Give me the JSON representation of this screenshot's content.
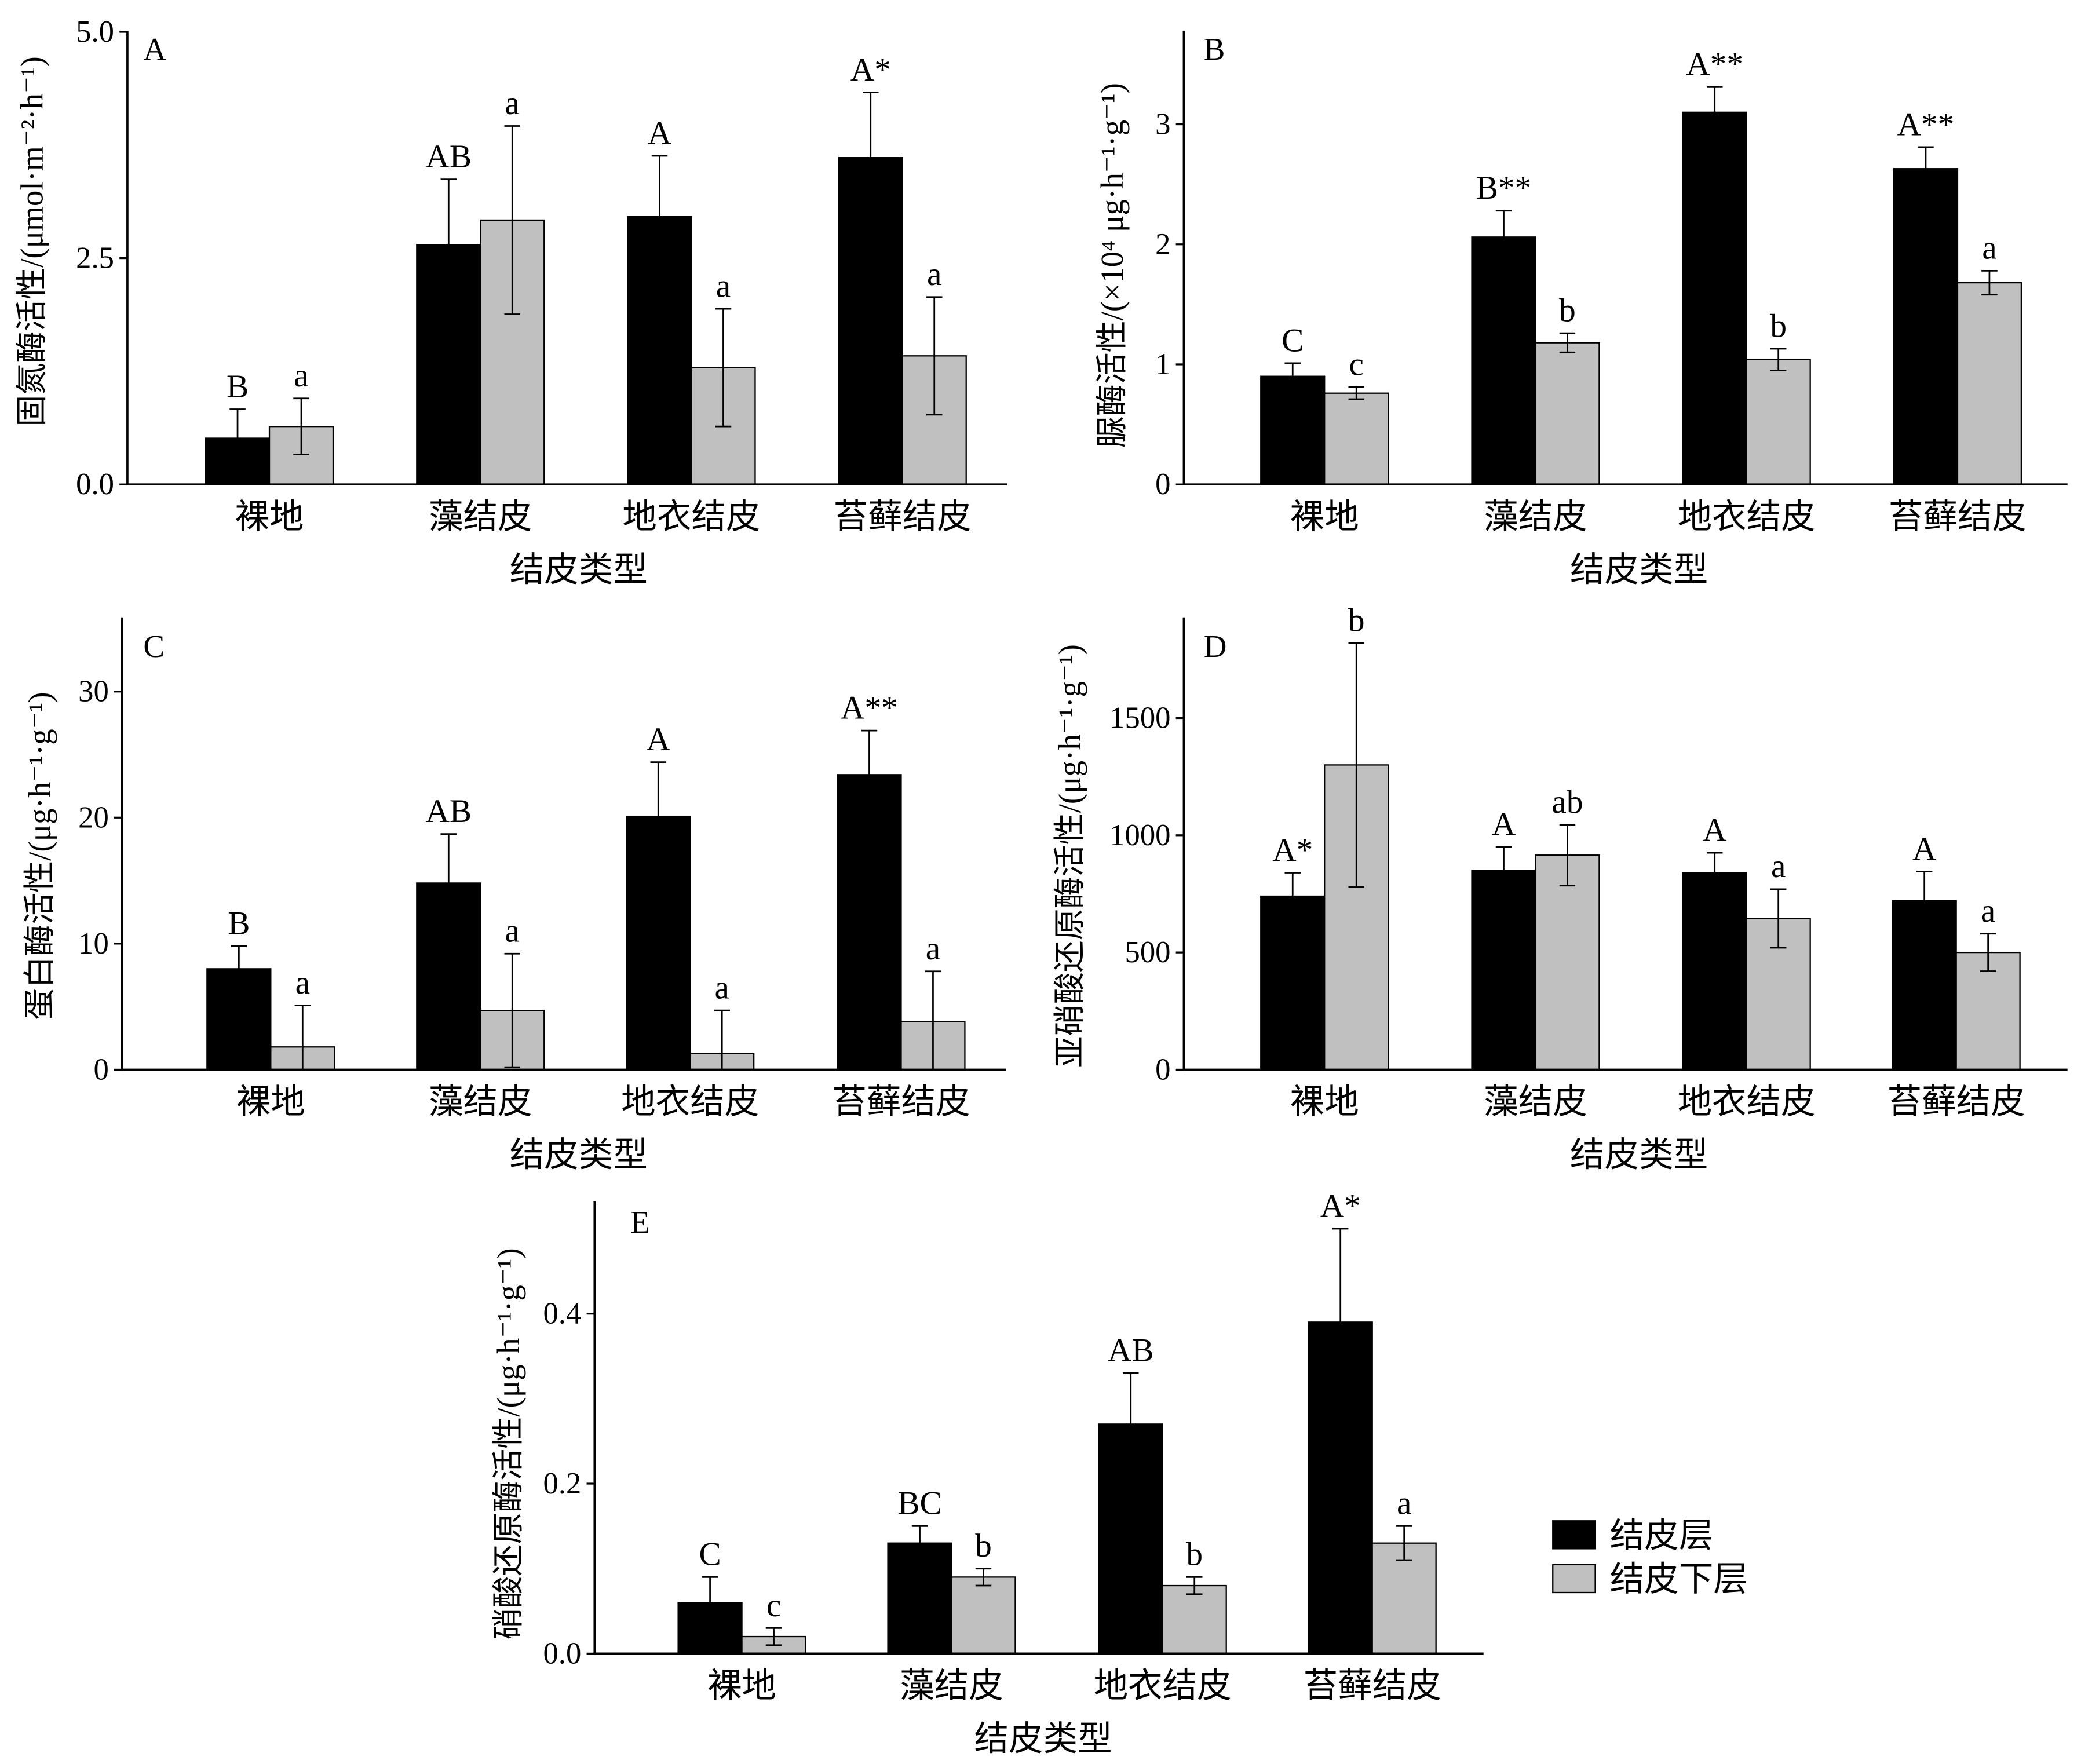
{
  "legend": {
    "placement": "right",
    "items": [
      {
        "name": "结皮层",
        "color": "#000000"
      },
      {
        "name": "结皮下层",
        "color": "#c0c0c0"
      }
    ]
  },
  "chart_data": [
    {
      "panel": "A",
      "type": "bar",
      "grid": false,
      "categories": [
        "裸地",
        "藻结皮",
        "地衣结皮",
        "苔藓结皮"
      ],
      "xlabel": "结皮类型",
      "ylabel": "固氮酶活性/(μmol·m⁻²·h⁻¹)",
      "ylim": [
        0,
        5.0
      ],
      "yticks": [
        0,
        2.5,
        5.0
      ],
      "yticklabels": [
        "0.0",
        "2.5",
        "5.0"
      ],
      "series": [
        {
          "name": "结皮层",
          "color": "#000000",
          "values": [
            0.51,
            2.65,
            2.96,
            3.61
          ],
          "errors": [
            0.32,
            0.72,
            0.67,
            0.72
          ],
          "labels": [
            "B",
            "AB",
            "A",
            "A*"
          ]
        },
        {
          "name": "结皮下层",
          "color": "#c0c0c0",
          "values": [
            0.64,
            2.92,
            1.29,
            1.42
          ],
          "errors": [
            0.31,
            1.04,
            0.65,
            0.65
          ],
          "labels": [
            "a",
            "a",
            "a",
            "a"
          ]
        }
      ]
    },
    {
      "panel": "B",
      "type": "bar",
      "grid": false,
      "categories": [
        "裸地",
        "藻结皮",
        "地衣结皮",
        "苔藓结皮"
      ],
      "xlabel": "结皮类型",
      "ylabel": "脲酶活性/(×10⁴ μg·h⁻¹·g⁻¹)",
      "ylim": [
        0,
        3.77
      ],
      "yticks": [
        0,
        1,
        2,
        3
      ],
      "yticklabels": [
        "0",
        "1",
        "2",
        "3"
      ],
      "series": [
        {
          "name": "结皮层",
          "color": "#000000",
          "values": [
            0.9,
            2.06,
            3.1,
            2.63
          ],
          "errors": [
            0.11,
            0.22,
            0.21,
            0.18
          ],
          "labels": [
            "C",
            "B**",
            "A**",
            "A**"
          ]
        },
        {
          "name": "结皮下层",
          "color": "#c0c0c0",
          "values": [
            0.76,
            1.18,
            1.04,
            1.68
          ],
          "errors": [
            0.05,
            0.08,
            0.09,
            0.1
          ],
          "labels": [
            "c",
            "b",
            "b",
            "a"
          ]
        }
      ]
    },
    {
      "panel": "C",
      "type": "bar",
      "grid": false,
      "categories": [
        "裸地",
        "藻结皮",
        "地衣结皮",
        "苔藓结皮"
      ],
      "xlabel": "结皮类型",
      "ylabel": "蛋白酶活性/(μg·h⁻¹·g⁻¹)",
      "ylim": [
        0,
        35.8
      ],
      "yticks": [
        0,
        10,
        20,
        30
      ],
      "yticklabels": [
        "0",
        "10",
        "20",
        "30"
      ],
      "series": [
        {
          "name": "结皮层",
          "color": "#000000",
          "values": [
            8.0,
            14.8,
            20.1,
            23.4
          ],
          "errors": [
            1.8,
            3.9,
            4.3,
            3.5
          ],
          "labels": [
            "B",
            "AB",
            "A",
            "A**"
          ]
        },
        {
          "name": "结皮下层",
          "color": "#c0c0c0",
          "values": [
            1.8,
            4.7,
            1.3,
            3.8
          ],
          "errors": [
            3.3,
            4.5,
            3.4,
            4.0
          ],
          "labels": [
            "a",
            "a",
            "a",
            "a"
          ]
        }
      ]
    },
    {
      "panel": "D",
      "type": "bar",
      "grid": false,
      "categories": [
        "裸地",
        "藻结皮",
        "地衣结皮",
        "苔藓结皮"
      ],
      "xlabel": "结皮类型",
      "ylabel": "亚硝酸还原酶活性/(μg·h⁻¹·g⁻¹)",
      "ylim": [
        0,
        1925
      ],
      "yticks": [
        0,
        500,
        1000,
        1500
      ],
      "yticklabels": [
        "0",
        "500",
        "1000",
        "1500"
      ],
      "series": [
        {
          "name": "结皮层",
          "color": "#000000",
          "values": [
            740,
            850,
            840,
            720
          ],
          "errors": [
            100,
            100,
            85,
            125
          ],
          "labels": [
            "A*",
            "A",
            "A",
            "A"
          ]
        },
        {
          "name": "结皮下层",
          "color": "#c0c0c0",
          "values": [
            1300,
            915,
            645,
            500
          ],
          "errors": [
            520,
            130,
            125,
            80
          ],
          "labels": [
            "b",
            "ab",
            "a",
            "a"
          ]
        }
      ]
    },
    {
      "panel": "E",
      "type": "bar",
      "grid": false,
      "categories": [
        "裸地",
        "藻结皮",
        "地衣结皮",
        "苔藓结皮"
      ],
      "xlabel": "结皮类型",
      "ylabel": "硝酸还原酶活性/(μg·h⁻¹·g⁻¹)",
      "ylim": [
        0,
        0.531
      ],
      "yticks": [
        0,
        0.2,
        0.4
      ],
      "yticklabels": [
        "0.0",
        "0.2",
        "0.4"
      ],
      "series": [
        {
          "name": "结皮层",
          "color": "#000000",
          "values": [
            0.06,
            0.13,
            0.27,
            0.39
          ],
          "errors": [
            0.03,
            0.02,
            0.06,
            0.11
          ],
          "labels": [
            "C",
            "BC",
            "AB",
            "A*"
          ]
        },
        {
          "name": "结皮下层",
          "color": "#c0c0c0",
          "values": [
            0.02,
            0.09,
            0.08,
            0.13
          ],
          "errors": [
            0.01,
            0.01,
            0.01,
            0.02
          ],
          "labels": [
            "c",
            "b",
            "b",
            "a"
          ]
        }
      ]
    }
  ]
}
